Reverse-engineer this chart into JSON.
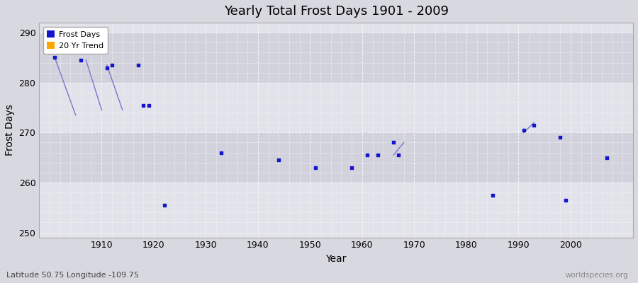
{
  "title": "Yearly Total Frost Days 1901 - 2009",
  "xlabel": "Year",
  "ylabel": "Frost Days",
  "xlim": [
    1898,
    2012
  ],
  "ylim": [
    249,
    292
  ],
  "yticks": [
    250,
    260,
    270,
    280,
    290
  ],
  "xticks": [
    1910,
    1920,
    1930,
    1940,
    1950,
    1960,
    1970,
    1980,
    1990,
    2000
  ],
  "outer_bg_color": "#d8d8e0",
  "plot_bg_color": "#e2e2ea",
  "band_color": "#d2d2dc",
  "grid_color": "#f5f5f8",
  "point_color": "#1515cc",
  "line_color": "#7777cc",
  "watermark": "worldspecies.org",
  "subtitle": "Latitude 50.75 Longitude -109.75",
  "scatter_points": [
    [
      1901,
      285.0
    ],
    [
      1906,
      284.5
    ],
    [
      1911,
      283.0
    ],
    [
      1912,
      283.5
    ],
    [
      1917,
      283.5
    ],
    [
      1918,
      275.5
    ],
    [
      1919,
      275.5
    ],
    [
      1922,
      255.5
    ],
    [
      1933,
      266.0
    ],
    [
      1944,
      264.5
    ],
    [
      1951,
      263.0
    ],
    [
      1958,
      263.0
    ],
    [
      1961,
      265.5
    ],
    [
      1963,
      265.5
    ],
    [
      1966,
      268.0
    ],
    [
      1967,
      265.5
    ],
    [
      1985,
      257.5
    ],
    [
      1991,
      270.5
    ],
    [
      1993,
      271.5
    ],
    [
      1998,
      269.0
    ],
    [
      1999,
      256.5
    ],
    [
      2007,
      265.0
    ]
  ],
  "line_segments": [
    [
      [
        1901,
        285.0
      ],
      [
        1905,
        273.5
      ]
    ],
    [
      [
        1907,
        284.5
      ],
      [
        1910,
        274.5
      ]
    ],
    [
      [
        1911,
        283.5
      ],
      [
        1914,
        274.5
      ]
    ],
    [
      [
        1966,
        265.5
      ],
      [
        1968,
        268.0
      ]
    ],
    [
      [
        1991,
        270.0
      ],
      [
        1993,
        272.0
      ]
    ]
  ],
  "band_ranges": [
    [
      260,
      270
    ],
    [
      280,
      290
    ]
  ]
}
